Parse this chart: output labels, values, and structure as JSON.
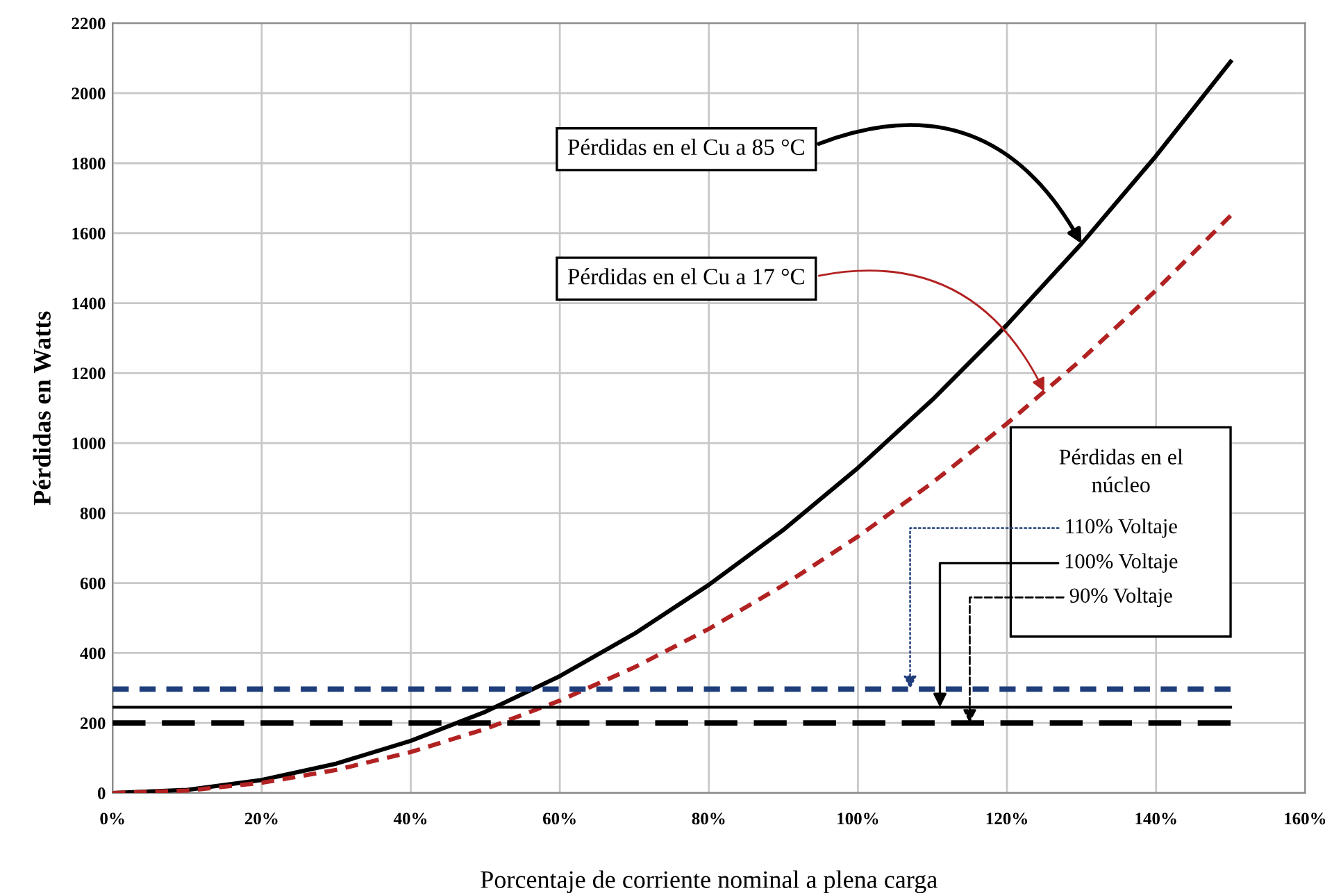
{
  "chart_data": {
    "type": "line",
    "xlabel": "Porcentaje de corriente nominal a plena carga",
    "ylabel": "Pérdidas en Watts",
    "x": [
      0,
      10,
      20,
      30,
      40,
      50,
      60,
      70,
      80,
      90,
      100,
      110,
      120,
      130,
      140,
      150
    ],
    "series": [
      {
        "color": "#000000",
        "line_style": "solid",
        "values": [
          0,
          9,
          37,
          84,
          149,
          232,
          334,
          455,
          595,
          752,
          929,
          1124,
          1338,
          1570,
          1821,
          2090
        ]
      },
      {
        "color": "#b22222",
        "line_style": "dashed",
        "values": [
          0,
          7,
          29,
          66,
          117,
          183,
          264,
          359,
          469,
          594,
          733,
          887,
          1056,
          1239,
          1437,
          1650
        ]
      },
      {
        "color": "#1f3d7a",
        "line_style": "dashed",
        "values": [
          297,
          297,
          297,
          297,
          297,
          297,
          297,
          297,
          297,
          297,
          297,
          297,
          297,
          297,
          297,
          297
        ]
      },
      {
        "color": "#000000",
        "line_style": "solid",
        "values": [
          245,
          245,
          245,
          245,
          245,
          245,
          245,
          245,
          245,
          245,
          245,
          245,
          245,
          245,
          245,
          245
        ]
      },
      {
        "color": "#000000",
        "line_style": "dashed",
        "values": [
          200,
          200,
          200,
          200,
          200,
          200,
          200,
          200,
          200,
          200,
          200,
          200,
          200,
          200,
          200,
          200
        ]
      }
    ],
    "annotations": [
      {
        "text": "Pérdidas en el Cu a 85 °C",
        "x": 130,
        "y": 1570
      },
      {
        "text": "Pérdidas en el Cu a 17 °C",
        "x": 125,
        "y": 1147
      },
      "Pérdidas en el\nnúcleo",
      {
        "text": "110% Voltaje",
        "x": 107,
        "y": 297
      },
      {
        "text": "100% Voltaje",
        "x": 111,
        "y": 245
      },
      {
        "text": "90% Voltaje",
        "x": 115,
        "y": 200
      }
    ],
    "xlim": [
      0,
      160
    ],
    "ylim": [
      0,
      2200
    ],
    "xticks": [
      {
        "value": 0,
        "label": "0%"
      },
      {
        "value": 20,
        "label": "20%"
      },
      {
        "value": 40,
        "label": "40%"
      },
      {
        "value": 60,
        "label": "60%"
      },
      {
        "value": 80,
        "label": "80%"
      },
      {
        "value": 100,
        "label": "100%"
      },
      {
        "value": 120,
        "label": "120%"
      },
      {
        "value": 140,
        "label": "140%"
      },
      {
        "value": 160,
        "label": "160%"
      }
    ],
    "yticks": [
      0,
      200,
      400,
      600,
      800,
      1000,
      1200,
      1400,
      1600,
      1800,
      2000,
      2200
    ],
    "grid": true,
    "legend": false,
    "marker": "none"
  }
}
